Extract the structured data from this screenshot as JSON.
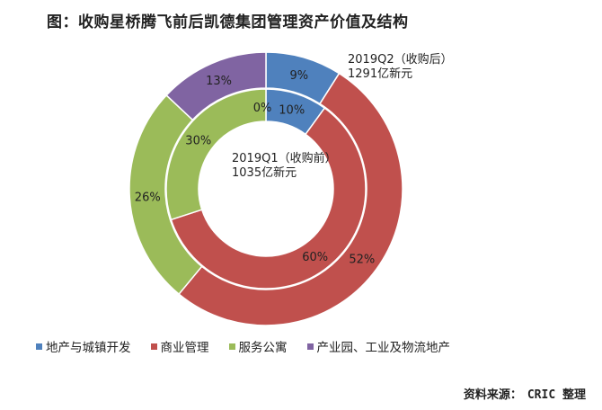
{
  "title": "图：收购星桥腾飞前后凯德集团管理资产价值及结构",
  "source_label": "资料来源：",
  "source_name": "CRIC 整理",
  "colors": {
    "地产与城镇开发": "#4f81bd",
    "商业管理": "#c0504d",
    "服务公寓": "#9bbb59",
    "产业园、工业及物流地产": "#8064a2"
  },
  "chart_data": {
    "type": "pie",
    "subtype": "doughnut",
    "categories": [
      "地产与城镇开发",
      "商业管理",
      "服务公寓",
      "产业园、工业及物流地产"
    ],
    "series": [
      {
        "ring": "outer",
        "center_label_line1": "2019Q2（收购后）",
        "center_label_line2": "1291亿新元",
        "values": [
          9,
          52,
          26,
          13
        ],
        "labels": [
          "9%",
          "52%",
          "26%",
          "13%"
        ]
      },
      {
        "ring": "inner",
        "center_label_line1": "2019Q1（收购前）",
        "center_label_line2": "1035亿新元",
        "values": [
          10,
          60,
          30,
          0
        ],
        "labels": [
          "10%",
          "60%",
          "30%",
          "0%"
        ]
      }
    ],
    "legend_position": "bottom"
  }
}
